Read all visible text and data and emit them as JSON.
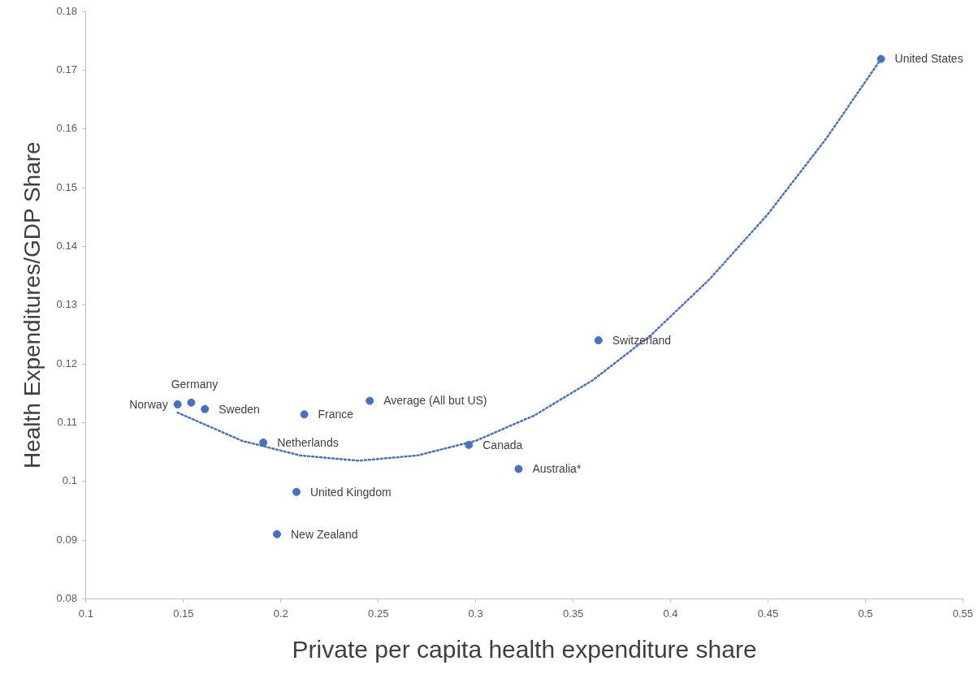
{
  "chart_data": {
    "type": "scatter",
    "xlabel": "Private per capita health expenditure share",
    "ylabel": "Health Expenditures/GDP Share",
    "xlim": [
      0.1,
      0.55
    ],
    "xticks": [
      0.1,
      0.15,
      0.2,
      0.25,
      0.3,
      0.35,
      0.4,
      0.45,
      0.5,
      0.55
    ],
    "ylim": [
      0.08,
      0.18
    ],
    "yticks": [
      0.08,
      0.09,
      0.1,
      0.11,
      0.12,
      0.13,
      0.14,
      0.15,
      0.16,
      0.17,
      0.18
    ],
    "grid": false,
    "legend": false,
    "marker": "circle",
    "series": [
      {
        "type": "scatter",
        "color": "#4472c4",
        "x": [
          0.147,
          0.154,
          0.161,
          0.191,
          0.212,
          0.2456,
          0.208,
          0.198,
          0.2965,
          0.322,
          0.363,
          0.508
        ],
        "values": [
          0.1131,
          0.1134,
          0.1123,
          0.1066,
          0.1114,
          0.1137,
          0.0982,
          0.091,
          0.1062,
          0.1021,
          0.124,
          0.1719
        ]
      },
      {
        "type": "line",
        "color": "#4472c4",
        "line_style": "dotted",
        "marker": "none",
        "x": [
          0.147,
          0.18,
          0.21,
          0.24,
          0.27,
          0.3,
          0.33,
          0.36,
          0.39,
          0.42,
          0.45,
          0.48,
          0.508
        ],
        "values": [
          0.1117,
          0.1069,
          0.1044,
          0.1035,
          0.1044,
          0.1069,
          0.1112,
          0.1172,
          0.1249,
          0.1344,
          0.1455,
          0.1584,
          0.1719
        ]
      }
    ],
    "annotations": [
      {
        "text": "Norway",
        "x": 0.147,
        "y": 0.1131
      },
      {
        "text": "Germany",
        "x": 0.154,
        "y": 0.1134
      },
      {
        "text": "Sweden",
        "x": 0.161,
        "y": 0.1123
      },
      {
        "text": "Netherlands",
        "x": 0.191,
        "y": 0.1066
      },
      {
        "text": "France",
        "x": 0.212,
        "y": 0.1114
      },
      {
        "text": "Average (All but US)",
        "x": 0.2456,
        "y": 0.1137
      },
      {
        "text": "United Kingdom",
        "x": 0.208,
        "y": 0.0982
      },
      {
        "text": "New Zealand",
        "x": 0.198,
        "y": 0.091
      },
      {
        "text": "Canada",
        "x": 0.2965,
        "y": 0.1062
      },
      {
        "text": "Australia*",
        "x": 0.322,
        "y": 0.1021
      },
      {
        "text": "Switzerland",
        "x": 0.363,
        "y": 0.124
      },
      {
        "text": "United States",
        "x": 0.508,
        "y": 0.1719
      }
    ]
  }
}
